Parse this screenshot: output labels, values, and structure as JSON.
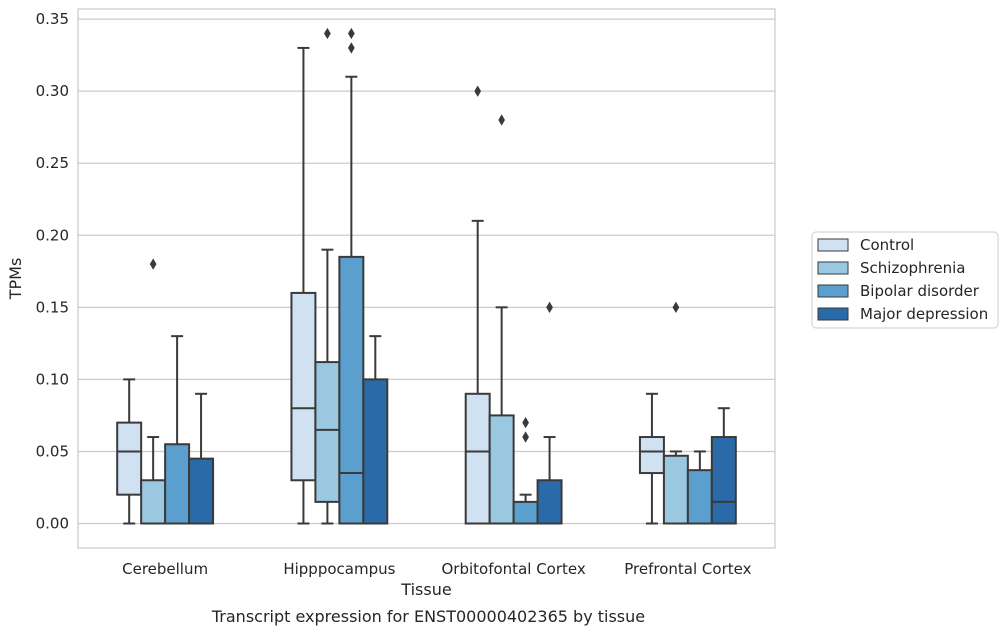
{
  "caption": "Transcript expression for ENST00000402365 by tissue",
  "chart_data": {
    "type": "box",
    "xlabel": "Tissue",
    "ylabel": "TPMs",
    "ylim": [
      -0.017,
      0.357
    ],
    "yticks": [
      "0.00",
      "0.05",
      "0.10",
      "0.15",
      "0.20",
      "0.25",
      "0.30",
      "0.35"
    ],
    "grid": "horizontal",
    "legend_position": "right",
    "categories": [
      "Cerebellum",
      "Hipppocampus",
      "Orbitofontal Cortex",
      "Prefrontal Cortex"
    ],
    "series": [
      {
        "name": "Control",
        "color": "#d0e1f2",
        "boxes": [
          {
            "whislo": 0.0,
            "q1": 0.02,
            "med": 0.05,
            "q3": 0.07,
            "whishi": 0.1,
            "fliers": []
          },
          {
            "whislo": 0.0,
            "q1": 0.03,
            "med": 0.08,
            "q3": 0.16,
            "whishi": 0.33,
            "fliers": []
          },
          {
            "whislo": 0.0,
            "q1": 0.0,
            "med": 0.05,
            "q3": 0.09,
            "whishi": 0.21,
            "fliers": [
              0.3
            ]
          },
          {
            "whislo": 0.0,
            "q1": 0.035,
            "med": 0.05,
            "q3": 0.06,
            "whishi": 0.09,
            "fliers": []
          }
        ]
      },
      {
        "name": "Schizophrenia",
        "color": "#9ac8e0",
        "boxes": [
          {
            "whislo": 0.0,
            "q1": 0.0,
            "med": 0.0,
            "q3": 0.03,
            "whishi": 0.06,
            "fliers": [
              0.18
            ]
          },
          {
            "whislo": 0.0,
            "q1": 0.015,
            "med": 0.065,
            "q3": 0.112,
            "whishi": 0.19,
            "fliers": [
              0.34
            ]
          },
          {
            "whislo": 0.0,
            "q1": 0.0,
            "med": 0.0,
            "q3": 0.075,
            "whishi": 0.15,
            "fliers": [
              0.28
            ]
          },
          {
            "whislo": 0.0,
            "q1": 0.0,
            "med": 0.0,
            "q3": 0.047,
            "whishi": 0.05,
            "fliers": [
              0.15
            ]
          }
        ]
      },
      {
        "name": "Bipolar disorder",
        "color": "#5a9fcd",
        "boxes": [
          {
            "whislo": 0.0,
            "q1": 0.0,
            "med": 0.0,
            "q3": 0.055,
            "whishi": 0.13,
            "fliers": []
          },
          {
            "whislo": 0.0,
            "q1": 0.0,
            "med": 0.035,
            "q3": 0.185,
            "whishi": 0.31,
            "fliers": [
              0.33,
              0.34
            ]
          },
          {
            "whislo": 0.0,
            "q1": 0.0,
            "med": 0.0,
            "q3": 0.015,
            "whishi": 0.02,
            "fliers": [
              0.06,
              0.07
            ]
          },
          {
            "whislo": 0.0,
            "q1": 0.0,
            "med": 0.0,
            "q3": 0.037,
            "whishi": 0.05,
            "fliers": []
          }
        ]
      },
      {
        "name": "Major depression",
        "color": "#2b6aa8",
        "boxes": [
          {
            "whislo": 0.0,
            "q1": 0.0,
            "med": 0.0,
            "q3": 0.045,
            "whishi": 0.09,
            "fliers": []
          },
          {
            "whislo": 0.0,
            "q1": 0.0,
            "med": 0.0,
            "q3": 0.1,
            "whishi": 0.13,
            "fliers": []
          },
          {
            "whislo": 0.0,
            "q1": 0.0,
            "med": 0.0,
            "q3": 0.03,
            "whishi": 0.06,
            "fliers": [
              0.15
            ]
          },
          {
            "whislo": 0.0,
            "q1": 0.0,
            "med": 0.015,
            "q3": 0.06,
            "whishi": 0.08,
            "fliers": []
          }
        ]
      }
    ]
  }
}
